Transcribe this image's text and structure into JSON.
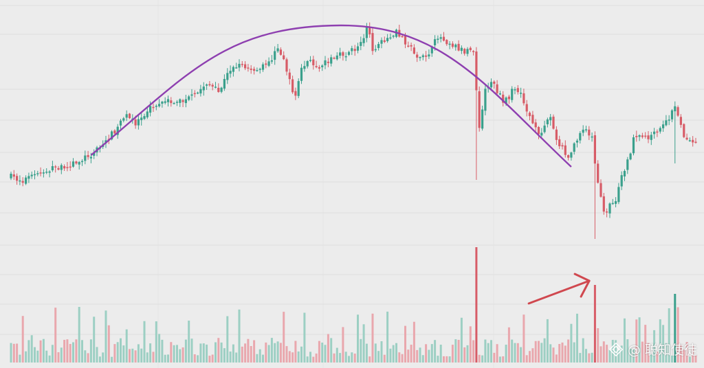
{
  "watermark": {
    "logo_icon": "binance-square-diamond-icon",
    "text": "@ 聪知使徒"
  },
  "colors": {
    "background": "#ececec",
    "grid": "#dedede",
    "up": "#3aa08c",
    "down": "#d75c67",
    "up_volume": "#9ccfc3",
    "down_volume": "#e9a7ad",
    "arc": "#8e3fb0",
    "arrow": "#d0484f"
  },
  "chart_data": {
    "type": "candlestick",
    "title": "",
    "xlabel": "",
    "ylabel": "",
    "axes_visible": false,
    "grid": true,
    "price_path": [
      [
        0,
        258
      ],
      [
        4,
        262
      ],
      [
        8,
        255
      ],
      [
        12,
        248
      ],
      [
        16,
        243
      ],
      [
        18,
        248
      ],
      [
        20,
        240
      ],
      [
        24,
        232
      ],
      [
        30,
        215
      ],
      [
        36,
        185
      ],
      [
        38,
        168
      ],
      [
        42,
        178
      ],
      [
        46,
        160
      ],
      [
        50,
        153
      ],
      [
        54,
        148
      ],
      [
        58,
        147
      ],
      [
        62,
        140
      ],
      [
        66,
        120
      ],
      [
        70,
        135
      ],
      [
        74,
        100
      ],
      [
        78,
        97
      ],
      [
        82,
        106
      ],
      [
        86,
        95
      ],
      [
        90,
        73
      ],
      [
        92,
        85
      ],
      [
        94,
        120
      ],
      [
        96,
        140
      ],
      [
        98,
        100
      ],
      [
        100,
        90
      ],
      [
        104,
        95
      ],
      [
        108,
        85
      ],
      [
        112,
        80
      ],
      [
        116,
        72
      ],
      [
        118,
        62
      ],
      [
        120,
        40
      ],
      [
        122,
        70
      ],
      [
        124,
        65
      ],
      [
        128,
        58
      ],
      [
        130,
        48
      ],
      [
        132,
        55
      ],
      [
        136,
        75
      ],
      [
        138,
        88
      ],
      [
        140,
        80
      ],
      [
        142,
        72
      ],
      [
        144,
        52
      ],
      [
        148,
        62
      ],
      [
        152,
        72
      ],
      [
        154,
        75
      ],
      [
        156,
        74
      ],
      [
        158,
        190
      ],
      [
        160,
        130
      ],
      [
        162,
        118
      ],
      [
        164,
        132
      ],
      [
        166,
        150
      ],
      [
        168,
        140
      ],
      [
        170,
        128
      ],
      [
        172,
        140
      ],
      [
        174,
        160
      ],
      [
        176,
        180
      ],
      [
        178,
        200
      ],
      [
        180,
        178
      ],
      [
        182,
        170
      ],
      [
        184,
        205
      ],
      [
        186,
        215
      ],
      [
        188,
        230
      ],
      [
        190,
        210
      ],
      [
        192,
        190
      ],
      [
        194,
        185
      ],
      [
        196,
        200
      ],
      [
        198,
        270
      ],
      [
        200,
        310
      ],
      [
        202,
        300
      ],
      [
        204,
        290
      ],
      [
        206,
        255
      ],
      [
        208,
        235
      ],
      [
        210,
        205
      ],
      [
        212,
        200
      ],
      [
        214,
        200
      ],
      [
        216,
        198
      ],
      [
        218,
        195
      ],
      [
        220,
        180
      ],
      [
        222,
        175
      ],
      [
        224,
        150
      ],
      [
        226,
        185
      ],
      [
        228,
        205
      ],
      [
        230,
        210
      ]
    ],
    "spikes": [
      {
        "bar": 157,
        "low": 262,
        "volume": 360
      },
      {
        "bar": 197,
        "low": 348,
        "volume": 415
      },
      {
        "bar": 224,
        "low": 238,
        "volume": 428
      }
    ],
    "arc": {
      "start_bar": 27,
      "peak_bar": 111,
      "end_bar": 189
    },
    "arrow": {
      "direction": "up-right",
      "points_to_bar": 196
    }
  }
}
